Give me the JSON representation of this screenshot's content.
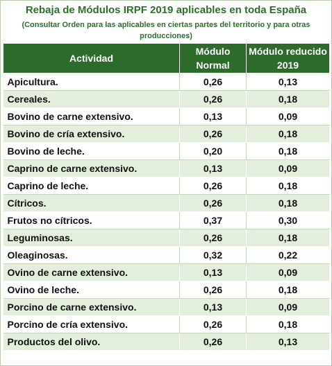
{
  "title": "Rebaja de Módulos IRPF 2019 aplicables en toda España",
  "subtitle": "(Consultar Orden para las aplicables en ciertas partes del territorio y para otras producciones)",
  "table": {
    "headers": [
      "Actividad",
      "Módulo Normal",
      "Módulo reducido 2019"
    ],
    "rows": [
      [
        "Apicultura.",
        "0,26",
        "0,13"
      ],
      [
        "Cereales.",
        "0,26",
        "0,18"
      ],
      [
        "Bovino de carne extensivo.",
        "0,13",
        "0,09"
      ],
      [
        "Bovino de cría extensivo.",
        "0,26",
        "0,18"
      ],
      [
        "Bovino de leche.",
        "0,20",
        "0,18"
      ],
      [
        "Caprino de carne extensivo.",
        "0,13",
        "0,09"
      ],
      [
        "Caprino de leche.",
        "0,26",
        "0,18"
      ],
      [
        "Cítricos.",
        "0,26",
        "0,18"
      ],
      [
        "Frutos no cítricos.",
        "0,37",
        "0,30"
      ],
      [
        "Leguminosas.",
        "0,26",
        "0,18"
      ],
      [
        "Oleaginosas.",
        "0,32",
        "0,22"
      ],
      [
        "Ovino de carne extensivo.",
        "0,13",
        "0,09"
      ],
      [
        "Ovino de leche.",
        "0,26",
        "0,18"
      ],
      [
        "Porcino de carne extensivo.",
        "0,13",
        "0,09"
      ],
      [
        "Porcino de cría extensivo.",
        "0,26",
        "0,18"
      ],
      [
        "Productos del olivo.",
        "0,26",
        "0,13"
      ]
    ]
  },
  "colors": {
    "header_bg": "#2d6b2a",
    "title": "#2f6e2e",
    "stripe": "#e3eedc"
  }
}
